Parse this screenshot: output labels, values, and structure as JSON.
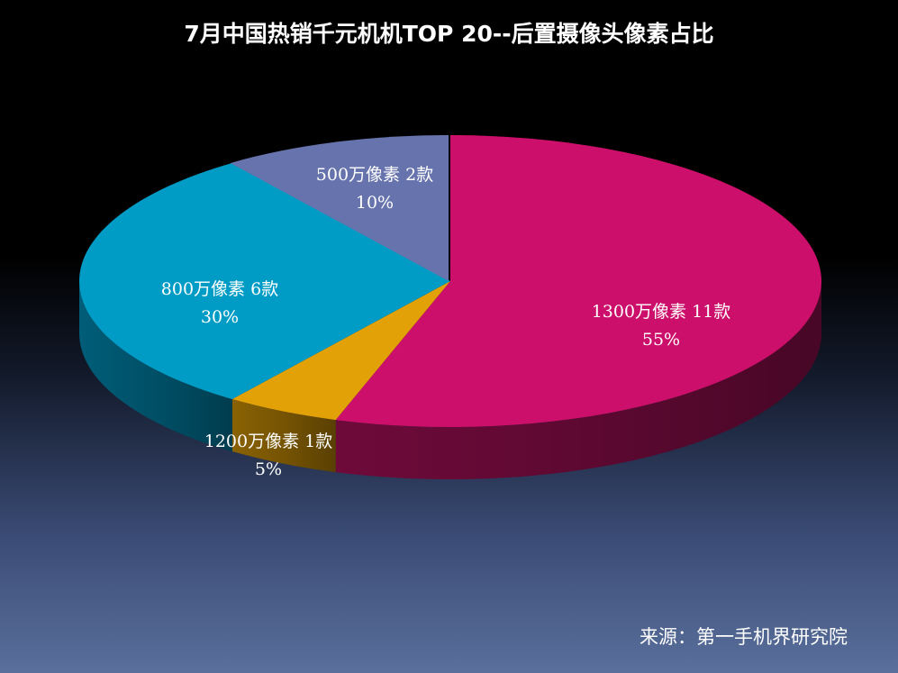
{
  "chart_data": {
    "type": "pie",
    "title": "7月中国热销千元机机TOP 20--后置摄像头像素占比",
    "slices": [
      {
        "label": "1300万像素 11款",
        "value": 55,
        "percent_text": "55%",
        "color": "#cc0f6a",
        "side_color": "#6e0a3a"
      },
      {
        "label": "1200万像素 1款",
        "value": 5,
        "percent_text": "5%",
        "color": "#e2a106",
        "side_color": "#8a6204"
      },
      {
        "label": "800万像素 6款",
        "value": 30,
        "percent_text": "30%",
        "color": "#009cc6",
        "side_color": "#005d78"
      },
      {
        "label": "500万像素 2款",
        "value": 10,
        "percent_text": "10%",
        "color": "#6673ac",
        "side_color": "#3d4470"
      }
    ],
    "style": "3d-exploded-perspective"
  },
  "source": "来源：第一手机界研究院"
}
